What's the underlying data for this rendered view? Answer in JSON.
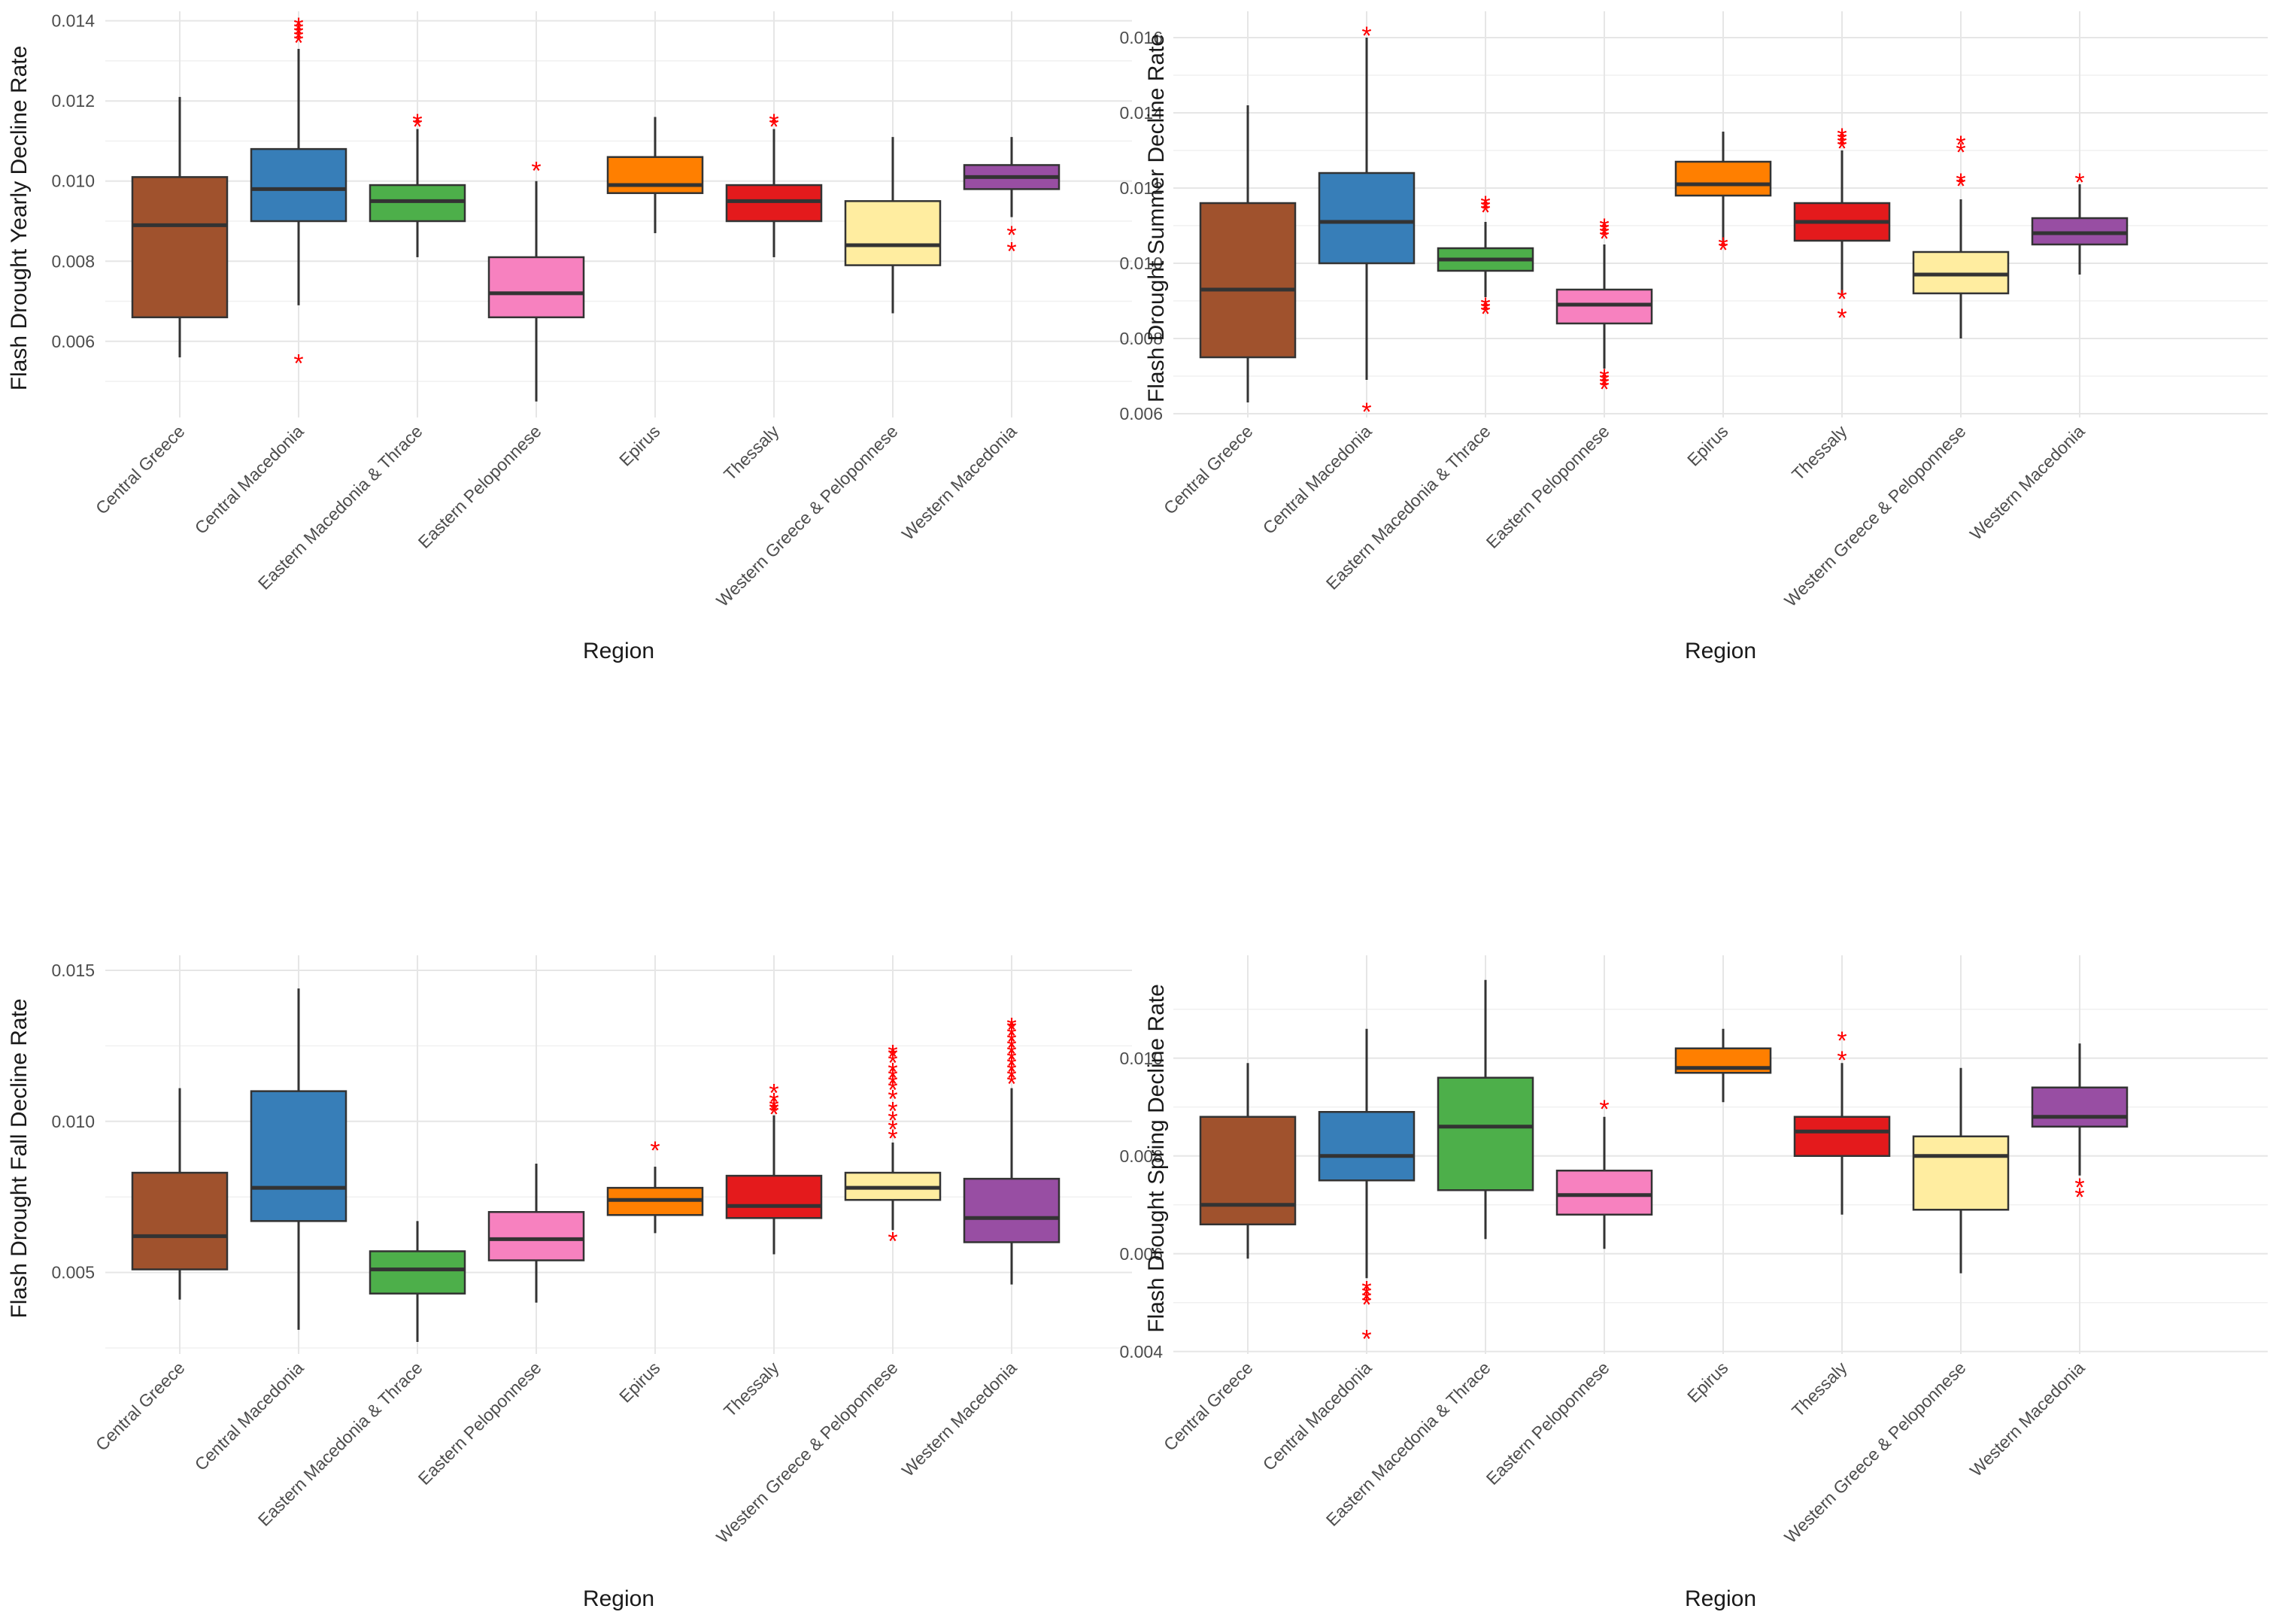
{
  "xlabel": "Region",
  "regions": [
    "Central Greece",
    "Central Macedonia",
    "Eastern Macedonia & Thrace",
    "Eastern Peloponnese",
    "Epirus",
    "Thessaly",
    "Western Greece & Peloponnese",
    "Western Macedonia"
  ],
  "region_colors": [
    "#a0522d",
    "#377eb8",
    "#4daf4a",
    "#f781bf",
    "#ff7f00",
    "#e41a1c",
    "#ffeda0",
    "#984ea3"
  ],
  "outlier_color": "#ff0000",
  "chart_data": [
    {
      "type": "boxplot",
      "position": "top-left",
      "ylabel": "Flash Drought Yearly Decline Rate",
      "xlabel": "Region",
      "ylim": [
        0.0041,
        0.01405
      ],
      "y_ticks": [
        0.006,
        0.008,
        0.01,
        0.012,
        0.014
      ],
      "y_tick_labels": [
        "0.006",
        "0.008",
        "0.010",
        "0.012",
        "0.014"
      ],
      "boxes": [
        {
          "region": "Central Greece",
          "min": 0.0056,
          "q1": 0.0066,
          "median": 0.0089,
          "q3": 0.0101,
          "max": 0.0121,
          "outliers": []
        },
        {
          "region": "Central Macedonia",
          "min": 0.0069,
          "q1": 0.009,
          "median": 0.0098,
          "q3": 0.0108,
          "max": 0.0133,
          "outliers": [
            0.0055,
            0.0135,
            0.0136,
            0.0137,
            0.0138,
            0.0139
          ]
        },
        {
          "region": "Eastern Macedonia & Thrace",
          "min": 0.0081,
          "q1": 0.009,
          "median": 0.0095,
          "q3": 0.0099,
          "max": 0.0113,
          "outliers": [
            0.0114,
            0.0115
          ]
        },
        {
          "region": "Eastern Peloponnese",
          "min": 0.0045,
          "q1": 0.0066,
          "median": 0.0072,
          "q3": 0.0081,
          "max": 0.01,
          "outliers": [
            0.0103
          ]
        },
        {
          "region": "Epirus",
          "min": 0.0087,
          "q1": 0.0097,
          "median": 0.0099,
          "q3": 0.0106,
          "max": 0.0116,
          "outliers": []
        },
        {
          "region": "Thessaly",
          "min": 0.0081,
          "q1": 0.009,
          "median": 0.0095,
          "q3": 0.0099,
          "max": 0.0113,
          "outliers": [
            0.0114,
            0.0115
          ]
        },
        {
          "region": "Western Greece & Peloponnese",
          "min": 0.0067,
          "q1": 0.0079,
          "median": 0.0084,
          "q3": 0.0095,
          "max": 0.0111,
          "outliers": []
        },
        {
          "region": "Western Macedonia",
          "min": 0.0091,
          "q1": 0.0098,
          "median": 0.0101,
          "q3": 0.0104,
          "max": 0.0111,
          "outliers": [
            0.0083,
            0.0087
          ]
        }
      ]
    },
    {
      "type": "boxplot",
      "position": "top-right",
      "ylabel": "Flash Drought Summer Decline Rate",
      "xlabel": "Region",
      "ylim": [
        0.0059,
        0.0165
      ],
      "y_ticks": [
        0.006,
        0.008,
        0.01,
        0.012,
        0.014,
        0.016
      ],
      "y_tick_labels": [
        "0.006",
        "0.008",
        "0.010",
        "0.012",
        "0.014",
        "0.016"
      ],
      "boxes": [
        {
          "region": "Central Greece",
          "min": 0.0063,
          "q1": 0.0075,
          "median": 0.0093,
          "q3": 0.0116,
          "max": 0.0142,
          "outliers": []
        },
        {
          "region": "Central Macedonia",
          "min": 0.0069,
          "q1": 0.01,
          "median": 0.0111,
          "q3": 0.0124,
          "max": 0.016,
          "outliers": [
            0.0061,
            0.0161
          ]
        },
        {
          "region": "Eastern Macedonia & Thrace",
          "min": 0.0091,
          "q1": 0.0098,
          "median": 0.0101,
          "q3": 0.0104,
          "max": 0.0111,
          "outliers": [
            0.0087,
            0.0088,
            0.0089,
            0.0114,
            0.0115,
            0.0116
          ]
        },
        {
          "region": "Eastern Peloponnese",
          "min": 0.0072,
          "q1": 0.0084,
          "median": 0.0089,
          "q3": 0.0093,
          "max": 0.0105,
          "outliers": [
            0.0067,
            0.0068,
            0.0069,
            0.007,
            0.0107,
            0.0108,
            0.0109,
            0.011
          ]
        },
        {
          "region": "Epirus",
          "min": 0.0106,
          "q1": 0.0118,
          "median": 0.0121,
          "q3": 0.0127,
          "max": 0.0135,
          "outliers": [
            0.0104,
            0.0105
          ]
        },
        {
          "region": "Thessaly",
          "min": 0.0092,
          "q1": 0.0106,
          "median": 0.0111,
          "q3": 0.0116,
          "max": 0.013,
          "outliers": [
            0.0086,
            0.0091,
            0.0131,
            0.0132,
            0.0133,
            0.0134
          ]
        },
        {
          "region": "Western Greece & Peloponnese",
          "min": 0.008,
          "q1": 0.0092,
          "median": 0.0097,
          "q3": 0.0103,
          "max": 0.0117,
          "outliers": [
            0.0121,
            0.0122,
            0.013,
            0.0132
          ]
        },
        {
          "region": "Western Macedonia",
          "min": 0.0097,
          "q1": 0.0105,
          "median": 0.0108,
          "q3": 0.0112,
          "max": 0.0121,
          "outliers": [
            0.0122
          ]
        }
      ]
    },
    {
      "type": "boxplot",
      "position": "bottom-left",
      "ylabel": "Flash Drought Fall Decline Rate",
      "xlabel": "Region",
      "ylim": [
        0.0023,
        0.01525
      ],
      "y_ticks": [
        0.005,
        0.01,
        0.015
      ],
      "y_tick_labels": [
        "0.005",
        "0.010",
        "0.015"
      ],
      "boxes": [
        {
          "region": "Central Greece",
          "min": 0.0041,
          "q1": 0.0051,
          "median": 0.0062,
          "q3": 0.0083,
          "max": 0.0111,
          "outliers": []
        },
        {
          "region": "Central Macedonia",
          "min": 0.0031,
          "q1": 0.0067,
          "median": 0.0078,
          "q3": 0.011,
          "max": 0.0144,
          "outliers": []
        },
        {
          "region": "Eastern Macedonia & Thrace",
          "min": 0.0027,
          "q1": 0.0043,
          "median": 0.0051,
          "q3": 0.0057,
          "max": 0.0067,
          "outliers": []
        },
        {
          "region": "Eastern Peloponnese",
          "min": 0.004,
          "q1": 0.0054,
          "median": 0.0061,
          "q3": 0.007,
          "max": 0.0086,
          "outliers": []
        },
        {
          "region": "Epirus",
          "min": 0.0063,
          "q1": 0.0069,
          "median": 0.0074,
          "q3": 0.0078,
          "max": 0.0085,
          "outliers": [
            0.0091
          ]
        },
        {
          "region": "Thessaly",
          "min": 0.0056,
          "q1": 0.0068,
          "median": 0.0072,
          "q3": 0.0082,
          "max": 0.0102,
          "outliers": [
            0.0103,
            0.0104,
            0.0105,
            0.0107,
            0.011
          ]
        },
        {
          "region": "Western Greece & Peloponnese",
          "min": 0.0064,
          "q1": 0.0074,
          "median": 0.0078,
          "q3": 0.0083,
          "max": 0.0093,
          "outliers": [
            0.0061,
            0.0095,
            0.0098,
            0.0101,
            0.0104,
            0.0108,
            0.0111,
            0.0113,
            0.0115,
            0.0117,
            0.012,
            0.0122,
            0.0123
          ]
        },
        {
          "region": "Western Macedonia",
          "min": 0.0046,
          "q1": 0.006,
          "median": 0.0068,
          "q3": 0.0081,
          "max": 0.0111,
          "outliers": [
            0.0113,
            0.0115,
            0.0117,
            0.0119,
            0.0121,
            0.0123,
            0.0125,
            0.0127,
            0.0129,
            0.0131,
            0.0132
          ]
        }
      ]
    },
    {
      "type": "boxplot",
      "position": "bottom-right",
      "ylabel": "Flash Drought Spring Decline Rate",
      "xlabel": "Region",
      "ylim": [
        0.00395,
        0.01195
      ],
      "y_ticks": [
        0.004,
        0.006,
        0.008,
        0.01
      ],
      "y_tick_labels": [
        "0.004",
        "0.006",
        "0.008",
        "0.010"
      ],
      "boxes": [
        {
          "region": "Central Greece",
          "min": 0.0059,
          "q1": 0.0066,
          "median": 0.007,
          "q3": 0.0088,
          "max": 0.0099,
          "outliers": []
        },
        {
          "region": "Central Macedonia",
          "min": 0.0055,
          "q1": 0.0075,
          "median": 0.008,
          "q3": 0.0089,
          "max": 0.0106,
          "outliers": [
            0.0043,
            0.005,
            0.0051,
            0.0052,
            0.0053
          ]
        },
        {
          "region": "Eastern Macedonia & Thrace",
          "min": 0.0063,
          "q1": 0.0073,
          "median": 0.0086,
          "q3": 0.0096,
          "max": 0.0116,
          "outliers": []
        },
        {
          "region": "Eastern Peloponnese",
          "min": 0.0061,
          "q1": 0.0068,
          "median": 0.0072,
          "q3": 0.0077,
          "max": 0.0088,
          "outliers": [
            0.009
          ]
        },
        {
          "region": "Epirus",
          "min": 0.0091,
          "q1": 0.0097,
          "median": 0.0098,
          "q3": 0.0102,
          "max": 0.0106,
          "outliers": []
        },
        {
          "region": "Thessaly",
          "min": 0.0068,
          "q1": 0.008,
          "median": 0.0085,
          "q3": 0.0088,
          "max": 0.0099,
          "outliers": [
            0.01,
            0.0104
          ]
        },
        {
          "region": "Western Greece & Peloponnese",
          "min": 0.0056,
          "q1": 0.0069,
          "median": 0.008,
          "q3": 0.0084,
          "max": 0.0098,
          "outliers": []
        },
        {
          "region": "Western Macedonia",
          "min": 0.0076,
          "q1": 0.0086,
          "median": 0.0088,
          "q3": 0.0094,
          "max": 0.0103,
          "outliers": [
            0.0072,
            0.0074
          ]
        }
      ]
    }
  ]
}
